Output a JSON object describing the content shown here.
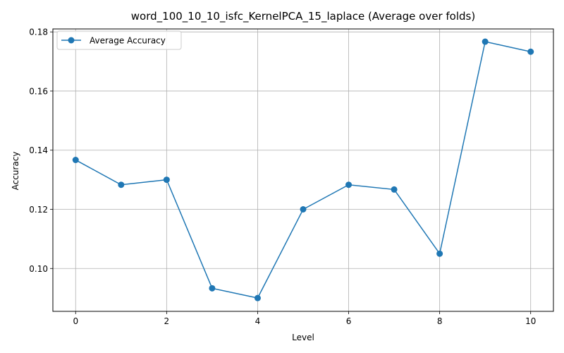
{
  "chart_data": {
    "type": "line",
    "title": "word_100_10_10_isfc_KernelPCA_15_laplace (Average over folds)",
    "xlabel": "Level",
    "ylabel": "Accuracy",
    "xlim": [
      -0.5,
      10.5
    ],
    "ylim": [
      0.0855,
      0.181
    ],
    "xticks": [
      0,
      2,
      4,
      6,
      8,
      10
    ],
    "xtick_labels": [
      "0",
      "2",
      "4",
      "6",
      "8",
      "10"
    ],
    "yticks": [
      0.1,
      0.12,
      0.14,
      0.16,
      0.18
    ],
    "ytick_labels": [
      "0.10",
      "0.12",
      "0.14",
      "0.16",
      "0.18"
    ],
    "grid": true,
    "legend_position": "upper-left",
    "x": [
      0,
      1,
      2,
      3,
      4,
      5,
      6,
      7,
      8,
      9,
      10
    ],
    "series": [
      {
        "name": "Average Accuracy",
        "color": "#1f77b4",
        "marker": "circle",
        "values": [
          0.1367,
          0.1283,
          0.13,
          0.0933,
          0.09,
          0.12,
          0.1283,
          0.1267,
          0.105,
          0.1767,
          0.1733
        ]
      }
    ]
  }
}
